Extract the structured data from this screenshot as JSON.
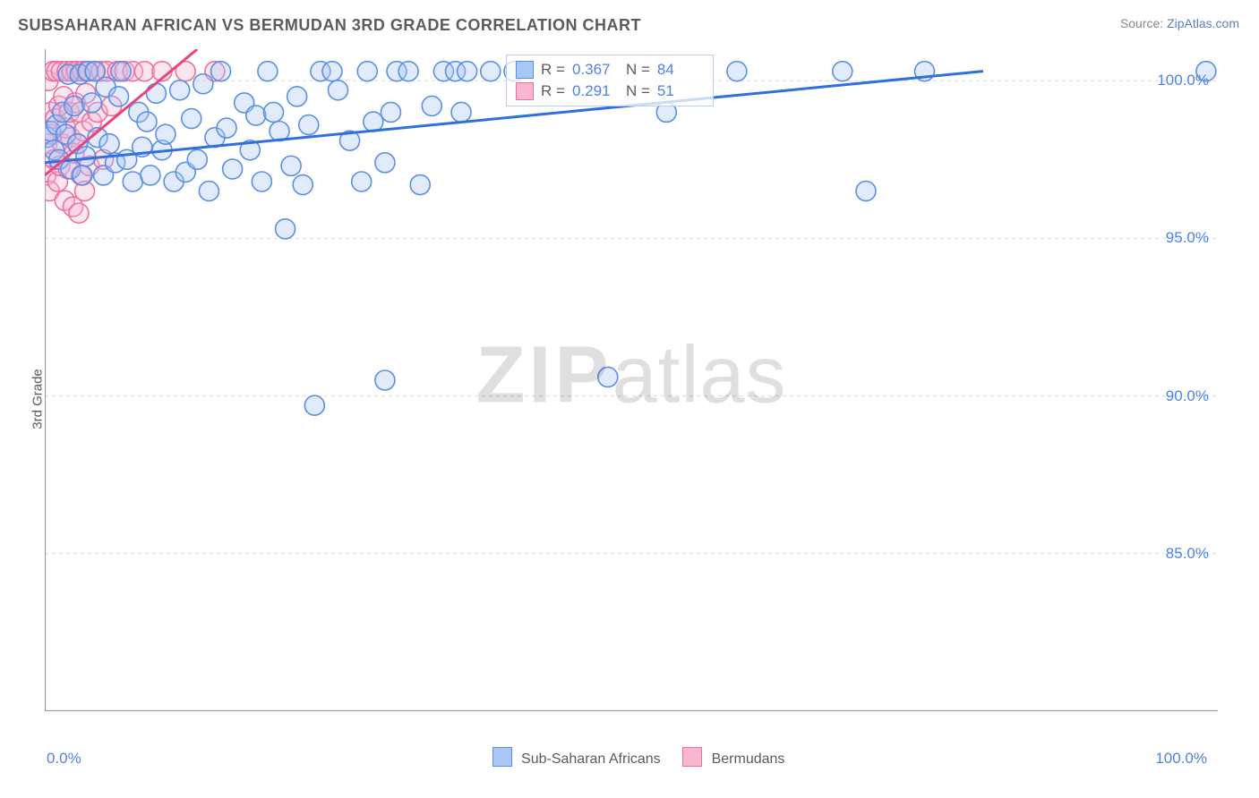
{
  "title": "SUBSAHARAN AFRICAN VS BERMUDAN 3RD GRADE CORRELATION CHART",
  "source_prefix": "Source: ",
  "source_link": "ZipAtlas.com",
  "y_axis_label": "3rd Grade",
  "watermark_bold": "ZIP",
  "watermark_rest": "atlas",
  "chart": {
    "type": "scatter",
    "xlim": [
      0,
      100
    ],
    "ylim": [
      80,
      101
    ],
    "x_ticks": [
      0,
      10,
      20,
      30,
      40,
      50,
      60,
      70,
      80,
      90,
      100
    ],
    "x_tick_labels": {
      "0": "0.0%",
      "100": "100.0%"
    },
    "y_ticks": [
      85,
      90,
      95,
      100
    ],
    "y_tick_labels": [
      "85.0%",
      "90.0%",
      "95.0%",
      "100.0%"
    ],
    "grid_color": "#d9d9d9",
    "grid_dash": "4,4",
    "axis_color": "#9a9a9a",
    "background_color": "#ffffff",
    "marker_radius": 11,
    "marker_stroke_width": 1.6,
    "marker_fill_opacity": 0.35,
    "trend_line_width": 3
  },
  "series": {
    "blue": {
      "label": "Sub-Saharan Africans",
      "fill": "#a9c6f5",
      "stroke": "#5a8fe6",
      "line_color": "#2f6fe0",
      "R": "0.367",
      "N": "84",
      "trend": {
        "x1": 0,
        "y1": 97.4,
        "x2": 80,
        "y2": 100.3
      },
      "points": [
        [
          0.2,
          98.2
        ],
        [
          0.5,
          98.4
        ],
        [
          0.8,
          97.8
        ],
        [
          1.0,
          98.6
        ],
        [
          1.2,
          97.5
        ],
        [
          1.5,
          99.0
        ],
        [
          1.8,
          98.3
        ],
        [
          2.0,
          100.2
        ],
        [
          2.2,
          97.2
        ],
        [
          2.5,
          99.2
        ],
        [
          2.8,
          98.0
        ],
        [
          3.0,
          100.2
        ],
        [
          3.2,
          97.0
        ],
        [
          3.5,
          97.6
        ],
        [
          3.7,
          100.3
        ],
        [
          4.0,
          99.3
        ],
        [
          4.3,
          100.3
        ],
        [
          4.5,
          98.2
        ],
        [
          5.0,
          97.0
        ],
        [
          5.2,
          99.8
        ],
        [
          5.5,
          98.0
        ],
        [
          6.0,
          97.4
        ],
        [
          6.3,
          99.5
        ],
        [
          6.5,
          100.3
        ],
        [
          7.0,
          97.5
        ],
        [
          7.5,
          96.8
        ],
        [
          8.0,
          99.0
        ],
        [
          8.3,
          97.9
        ],
        [
          8.7,
          98.7
        ],
        [
          9.0,
          97.0
        ],
        [
          9.5,
          99.6
        ],
        [
          10.0,
          97.8
        ],
        [
          10.3,
          98.3
        ],
        [
          11.0,
          96.8
        ],
        [
          11.5,
          99.7
        ],
        [
          12.0,
          97.1
        ],
        [
          12.5,
          98.8
        ],
        [
          13.0,
          97.5
        ],
        [
          13.5,
          99.9
        ],
        [
          14.0,
          96.5
        ],
        [
          14.5,
          98.2
        ],
        [
          15.0,
          100.3
        ],
        [
          15.5,
          98.5
        ],
        [
          16.0,
          97.2
        ],
        [
          17.0,
          99.3
        ],
        [
          17.5,
          97.8
        ],
        [
          18.0,
          98.9
        ],
        [
          18.5,
          96.8
        ],
        [
          19.0,
          100.3
        ],
        [
          19.5,
          99.0
        ],
        [
          20.0,
          98.4
        ],
        [
          20.5,
          95.3
        ],
        [
          21.0,
          97.3
        ],
        [
          21.5,
          99.5
        ],
        [
          22.0,
          96.7
        ],
        [
          22.5,
          98.6
        ],
        [
          23.5,
          100.3
        ],
        [
          24.5,
          100.3
        ],
        [
          25.0,
          99.7
        ],
        [
          26.0,
          98.1
        ],
        [
          27.0,
          96.8
        ],
        [
          27.5,
          100.3
        ],
        [
          28.0,
          98.7
        ],
        [
          29.0,
          97.4
        ],
        [
          29.5,
          99.0
        ],
        [
          29.0,
          90.5
        ],
        [
          30.0,
          100.3
        ],
        [
          31.0,
          100.3
        ],
        [
          32.0,
          96.7
        ],
        [
          33.0,
          99.2
        ],
        [
          34.0,
          100.3
        ],
        [
          35.0,
          100.3
        ],
        [
          35.5,
          99.0
        ],
        [
          36.0,
          100.3
        ],
        [
          38.0,
          100.3
        ],
        [
          40.0,
          100.3
        ],
        [
          23.0,
          89.7
        ],
        [
          48.0,
          90.6
        ],
        [
          53.0,
          99.0
        ],
        [
          59.0,
          100.3
        ],
        [
          68.0,
          100.3
        ],
        [
          70.0,
          96.5
        ],
        [
          75.0,
          100.3
        ],
        [
          99.0,
          100.3
        ]
      ]
    },
    "pink": {
      "label": "Bermudans",
      "fill": "#f7b8cf",
      "stroke": "#ef6fa3",
      "line_color": "#e8447f",
      "R": "0.291",
      "N": "51",
      "trend": {
        "x1": 0,
        "y1": 97.0,
        "x2": 13,
        "y2": 101.0
      },
      "points": [
        [
          0.1,
          97.0
        ],
        [
          0.2,
          98.0
        ],
        [
          0.3,
          100.0
        ],
        [
          0.4,
          96.5
        ],
        [
          0.5,
          99.0
        ],
        [
          0.6,
          98.3
        ],
        [
          0.7,
          100.3
        ],
        [
          0.8,
          97.5
        ],
        [
          0.9,
          98.8
        ],
        [
          1.0,
          100.3
        ],
        [
          1.1,
          96.8
        ],
        [
          1.2,
          99.2
        ],
        [
          1.3,
          97.3
        ],
        [
          1.4,
          100.3
        ],
        [
          1.5,
          98.0
        ],
        [
          1.6,
          99.5
        ],
        [
          1.7,
          96.2
        ],
        [
          1.8,
          98.5
        ],
        [
          1.9,
          100.3
        ],
        [
          2.0,
          97.2
        ],
        [
          2.1,
          99.0
        ],
        [
          2.2,
          98.2
        ],
        [
          2.3,
          100.3
        ],
        [
          2.4,
          96.0
        ],
        [
          2.5,
          97.7
        ],
        [
          2.6,
          99.3
        ],
        [
          2.7,
          100.3
        ],
        [
          2.8,
          98.0
        ],
        [
          2.9,
          95.8
        ],
        [
          3.0,
          99.0
        ],
        [
          3.1,
          97.0
        ],
        [
          3.2,
          100.3
        ],
        [
          3.3,
          98.4
        ],
        [
          3.4,
          96.5
        ],
        [
          3.5,
          99.6
        ],
        [
          3.6,
          100.3
        ],
        [
          3.8,
          97.3
        ],
        [
          4.0,
          98.7
        ],
        [
          4.2,
          100.3
        ],
        [
          4.5,
          99.0
        ],
        [
          4.8,
          100.3
        ],
        [
          5.0,
          97.5
        ],
        [
          5.3,
          100.3
        ],
        [
          5.7,
          99.2
        ],
        [
          6.2,
          100.3
        ],
        [
          6.8,
          100.3
        ],
        [
          7.5,
          100.3
        ],
        [
          8.5,
          100.3
        ],
        [
          10.0,
          100.3
        ],
        [
          12.0,
          100.3
        ],
        [
          14.5,
          100.3
        ]
      ]
    }
  },
  "stats_labels": {
    "R": "R =",
    "N": "N ="
  },
  "bottom_legend": {
    "blue_label": "Sub-Saharan Africans",
    "pink_label": "Bermudans"
  }
}
